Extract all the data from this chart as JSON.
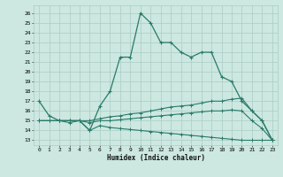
{
  "xlabel": "Humidex (Indice chaleur)",
  "bg_color": "#cce8e0",
  "grid_color": "#aaccc4",
  "line_color": "#2a7a6a",
  "x_ticks": [
    0,
    1,
    2,
    3,
    4,
    5,
    6,
    7,
    8,
    9,
    10,
    11,
    12,
    13,
    14,
    15,
    16,
    17,
    18,
    19,
    20,
    21,
    22,
    23
  ],
  "y_ticks": [
    13,
    14,
    15,
    16,
    17,
    18,
    19,
    20,
    21,
    22,
    23,
    24,
    25,
    26
  ],
  "ylim": [
    12.5,
    26.8
  ],
  "xlim": [
    -0.5,
    23.5
  ],
  "line1_x": [
    0,
    1,
    2,
    3,
    4,
    5,
    6,
    7,
    8,
    9,
    10,
    11,
    12,
    13,
    14,
    15,
    16,
    17,
    18,
    19,
    20,
    21,
    22,
    23
  ],
  "line1_y": [
    17,
    15.5,
    15,
    15,
    15,
    14,
    16.5,
    18,
    21.5,
    21.5,
    26,
    25,
    23,
    23,
    22,
    21.5,
    22,
    22,
    19.5,
    19,
    17,
    16,
    15,
    13
  ],
  "line2_x": [
    0,
    1,
    2,
    3,
    4,
    5,
    6,
    7,
    8,
    9,
    10,
    11,
    12,
    13,
    14,
    15,
    16,
    17,
    18,
    19,
    20,
    21,
    22,
    23
  ],
  "line2_y": [
    15,
    15,
    15,
    15,
    15,
    15,
    15.2,
    15.4,
    15.5,
    15.7,
    15.8,
    16.0,
    16.2,
    16.4,
    16.5,
    16.6,
    16.8,
    17.0,
    17.0,
    17.2,
    17.3,
    16.0,
    15.0,
    13.0
  ],
  "line3_x": [
    0,
    1,
    2,
    3,
    4,
    5,
    6,
    7,
    8,
    9,
    10,
    11,
    12,
    13,
    14,
    15,
    16,
    17,
    18,
    19,
    20,
    21,
    22,
    23
  ],
  "line3_y": [
    15,
    15,
    15,
    15,
    15,
    14.8,
    15.0,
    15.0,
    15.1,
    15.2,
    15.3,
    15.4,
    15.5,
    15.6,
    15.7,
    15.8,
    15.9,
    16.0,
    16.0,
    16.1,
    16.0,
    15.0,
    14.2,
    13.0
  ],
  "line4_x": [
    0,
    1,
    2,
    3,
    4,
    5,
    6,
    7,
    8,
    9,
    10,
    11,
    12,
    13,
    14,
    15,
    16,
    17,
    18,
    19,
    20,
    21,
    22,
    23
  ],
  "line4_y": [
    15,
    15,
    15,
    14.8,
    15,
    14.0,
    14.5,
    14.3,
    14.2,
    14.1,
    14.0,
    13.9,
    13.8,
    13.7,
    13.6,
    13.5,
    13.4,
    13.3,
    13.2,
    13.1,
    13.0,
    13.0,
    13.0,
    13.0
  ]
}
